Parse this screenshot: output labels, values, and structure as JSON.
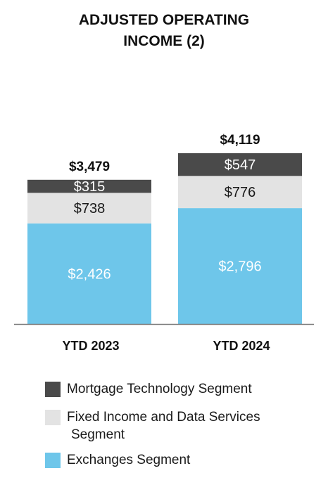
{
  "chart_data": {
    "type": "bar",
    "stacked": true,
    "title_lines": [
      "ADJUSTED OPERATING",
      "INCOME (2)"
    ],
    "categories": [
      "YTD 2023",
      "YTD 2024"
    ],
    "totals": [
      3479,
      4119
    ],
    "total_labels": [
      "$3,479",
      "$4,119"
    ],
    "series": [
      {
        "name": "Exchanges Segment",
        "values": [
          2426,
          2796
        ],
        "labels": [
          "$2,426",
          "$2,796"
        ],
        "color": "#6ec6ea",
        "label_color": "#ffffff"
      },
      {
        "name": "Fixed Income and Data Services Segment",
        "values": [
          738,
          776
        ],
        "labels": [
          "$738",
          "$776"
        ],
        "color": "#e3e3e3",
        "label_color": "#1a1a1a"
      },
      {
        "name": "Mortgage Technology Segment",
        "values": [
          315,
          547
        ],
        "labels": [
          "$315",
          "$547"
        ],
        "color": "#4a4a4a",
        "label_color": "#ffffff"
      }
    ],
    "legend_order": [
      2,
      1,
      0
    ],
    "legend_lines": [
      [
        "Mortgage Technology Segment"
      ],
      [
        "Fixed Income and Data Services",
        "Segment"
      ],
      [
        "Exchanges Segment"
      ]
    ],
    "ylim": [
      0,
      4119
    ],
    "grid": false,
    "legend_position": "bottom"
  }
}
